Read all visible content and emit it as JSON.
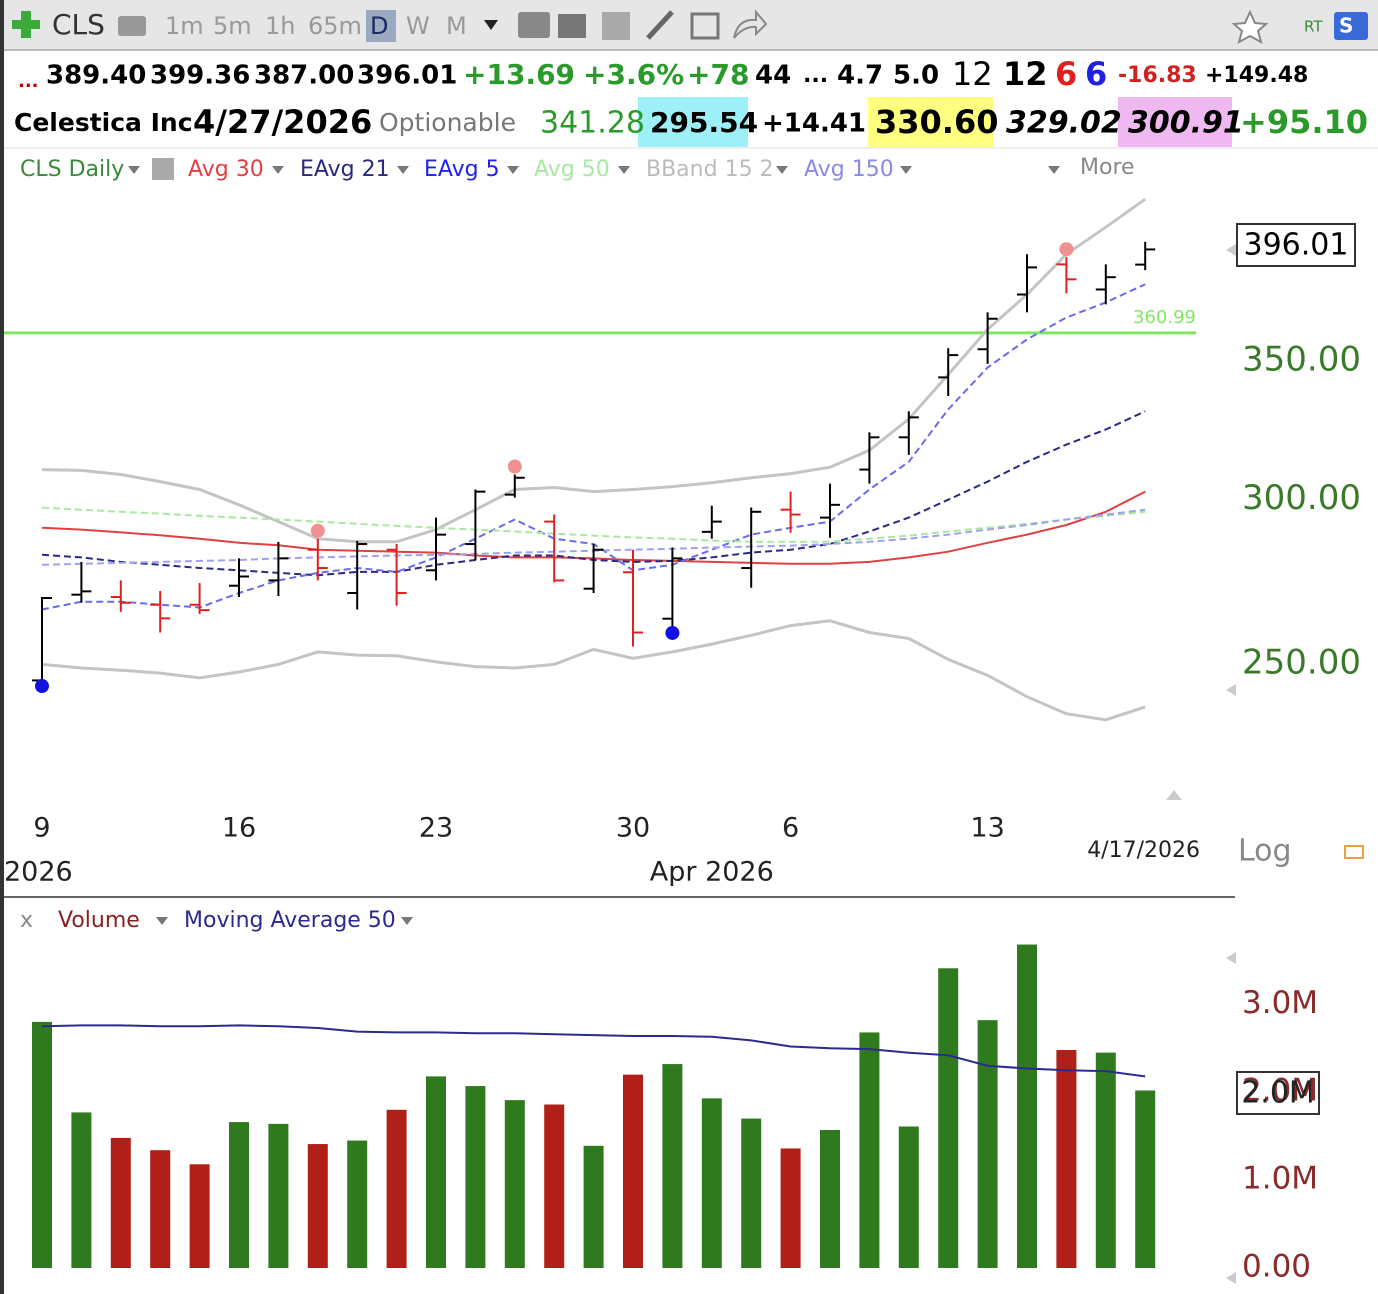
{
  "toolbar": {
    "symbol": "CLS",
    "intervals": [
      "1m",
      "5m",
      "1h",
      "65m",
      "D",
      "W",
      "M"
    ],
    "rt": "RT",
    "s": "S"
  },
  "quote_row": [
    "...",
    "389.40",
    "399.36",
    "387.00",
    "396.01",
    "+13.69",
    "+3.6%",
    "+78",
    "44",
    "...",
    "4.7",
    "5.0",
    "12",
    "12",
    "6",
    "6",
    "-16.83",
    "+149.48"
  ],
  "info_row": [
    "Celestica Inc",
    "4/27/2026",
    "Optionable",
    "341.28",
    "295.54",
    "+14.41",
    "330.60",
    "329.02",
    "300.91",
    "+95.10"
  ],
  "more": "More",
  "log_label": "Log",
  "chart_data": [
    {
      "type": "ohlc",
      "title": "CLS Daily",
      "log_scale": true,
      "up_color": "#000000",
      "down_color": "#e02020",
      "x": [
        "2026-03-09",
        "2026-03-10",
        "2026-03-11",
        "2026-03-12",
        "2026-03-13",
        "2026-03-16",
        "2026-03-17",
        "2026-03-18",
        "2026-03-19",
        "2026-03-20",
        "2026-03-23",
        "2026-03-24",
        "2026-03-25",
        "2026-03-26",
        "2026-03-27",
        "2026-03-30",
        "2026-03-31",
        "2026-04-01",
        "2026-04-02",
        "2026-04-06",
        "2026-04-07",
        "2026-04-08",
        "2026-04-09",
        "2026-04-10",
        "2026-04-13",
        "2026-04-14",
        "2026-04-15",
        "2026-04-16",
        "2026-04-17"
      ],
      "open": [
        245.5,
        270,
        269.3,
        267,
        267,
        272.7,
        274.3,
        283.8,
        270.5,
        283.8,
        277.4,
        285.6,
        301.7,
        292.8,
        271.8,
        276.8,
        262.9,
        289.5,
        278.1,
        296.7,
        294.1,
        310.2,
        321.5,
        343.6,
        354.5,
        376.7,
        389.5,
        378.8,
        389.4
      ],
      "high": [
        269.3,
        280,
        274.3,
        271.1,
        273.5,
        281.1,
        286.3,
        287.3,
        286.6,
        285.6,
        294.1,
        303.4,
        308.5,
        295.1,
        285.6,
        283.8,
        284.5,
        298,
        297.4,
        302.7,
        305.4,
        323.3,
        330.9,
        354.9,
        369.3,
        393.9,
        392.6,
        389.5,
        399.36
      ],
      "low": [
        245.6,
        267.6,
        264.9,
        258.9,
        264.3,
        269.3,
        269.6,
        274.3,
        265.6,
        266.7,
        274.3,
        280.6,
        300.7,
        273.7,
        270.5,
        254.9,
        260.5,
        287.3,
        272.1,
        289.2,
        287.6,
        305.4,
        315.3,
        336.6,
        348.8,
        369.3,
        377.2,
        372.6,
        387.0
      ],
      "close": [
        269,
        271,
        267.6,
        263,
        265.4,
        275.5,
        281.1,
        278.1,
        285.6,
        270.5,
        288.6,
        302.7,
        307.4,
        274.3,
        283.8,
        258.9,
        281.1,
        292.8,
        296,
        295.1,
        298.3,
        321.5,
        328.7,
        352.2,
        366.7,
        388.2,
        383.1,
        384,
        396.01
      ],
      "series": [
        {
          "name": "Avg 30",
          "color": "#e04040",
          "dashed": false,
          "values": [
            290.8,
            290.2,
            289.3,
            288.4,
            287.3,
            286.0,
            285.2,
            283.8,
            283.5,
            283.2,
            282.9,
            282.0,
            281.4,
            281.4,
            281.1,
            280.6,
            280.3,
            280.0,
            279.7,
            279.4,
            279.4,
            280.0,
            281.4,
            283.2,
            286.0,
            288.6,
            291.7,
            296.0,
            302.7
          ]
        },
        {
          "name": "EAvg 21",
          "color": "#2a2a80",
          "dashed": true,
          "values": [
            282.2,
            281.4,
            280.0,
            279.1,
            278.1,
            277.4,
            276.6,
            275.9,
            276.9,
            276.9,
            279.1,
            280.6,
            282.0,
            282.0,
            280.6,
            280.0,
            280.3,
            281.4,
            282.9,
            283.8,
            285.6,
            289.6,
            294.1,
            300,
            306.1,
            312.9,
            318.9,
            324.3,
            330.9
          ]
        },
        {
          "name": "EAvg 5",
          "color": "#2222ee",
          "line_color": "#6a6aee",
          "dashed": true,
          "values": [
            265.6,
            267.9,
            267.9,
            267,
            266.2,
            270.5,
            274.3,
            276.6,
            278.1,
            276.9,
            281.4,
            287.3,
            293.5,
            287.3,
            285.6,
            277.4,
            279.1,
            283.8,
            288.6,
            290.8,
            292.8,
            303.4,
            312.9,
            331.6,
            347.4,
            358.4,
            367.2,
            373.4,
            381.0
          ]
        },
        {
          "name": "Avg 50",
          "color": "#a8e8a0",
          "dashed": true,
          "values": [
            297.4,
            296.7,
            296.0,
            295.4,
            294.7,
            294.1,
            293.5,
            292.8,
            292.1,
            291.4,
            290.8,
            290.2,
            289.6,
            288.9,
            288.3,
            287.7,
            287.3,
            286.7,
            286.3,
            286.3,
            286.3,
            287.3,
            288.3,
            289.6,
            290.8,
            292.1,
            293.5,
            294.7,
            296.0
          ]
        },
        {
          "name": "Avg 150",
          "color": "#8a8ae8",
          "line_color": "#a0a0f0",
          "dashed": true,
          "values": [
            279.1,
            279.4,
            279.7,
            280,
            280.3,
            280.6,
            281.1,
            281.4,
            281.7,
            282.0,
            282.2,
            282.5,
            282.9,
            283.2,
            283.5,
            283.8,
            284.1,
            284.5,
            284.8,
            285.1,
            285.6,
            286.3,
            287.3,
            288.6,
            290.2,
            291.7,
            293.5,
            295.1,
            296.7
          ]
        }
      ],
      "bband": {
        "name": "BBand 15 2",
        "color": "#bbbbbb",
        "upper": [
          310.2,
          309.9,
          308.5,
          306.1,
          303.4,
          298.3,
          292.8,
          287.3,
          286.3,
          286.3,
          290.2,
          296.7,
          303.4,
          304.1,
          302.7,
          303.4,
          304.4,
          305.7,
          307.4,
          308.8,
          311,
          316.9,
          328.1,
          344.7,
          362.4,
          376.7,
          393.9,
          405.9,
          418.7
        ],
        "lower": [
          249.9,
          248.9,
          248.3,
          247.5,
          246.2,
          247.8,
          249.9,
          253.4,
          252.5,
          252.3,
          250.6,
          249.3,
          248.9,
          249.9,
          254.1,
          251.6,
          253.4,
          255.6,
          258.1,
          260.9,
          262.3,
          258.9,
          257.2,
          251.3,
          246.9,
          241.1,
          236.6,
          235,
          238.4
        ]
      },
      "hline": 360.99,
      "hline_color": "#80e860",
      "ylim": [
        215,
        423
      ],
      "yticks": [
        {
          "value": 250,
          "label": "250.00"
        },
        {
          "value": 300,
          "label": "300.00"
        },
        {
          "value": 350,
          "label": "350.00"
        }
      ],
      "xticks": [
        {
          "value": "2026-03-09",
          "label": "9"
        },
        {
          "value": "2026-03-16",
          "label": "16"
        },
        {
          "value": "2026-03-23",
          "label": "23"
        },
        {
          "value": "2026-03-30",
          "label": "30"
        },
        {
          "value": "2026-04-06",
          "label": "6"
        },
        {
          "value": "2026-04-13",
          "label": "13"
        }
      ],
      "period_labels": [
        {
          "value": "2026-03-09",
          "label": "2026"
        },
        {
          "value": "2026-04-01",
          "label": "Apr 2026"
        }
      ],
      "last_date": "4/17/2026"
    },
    {
      "type": "bar",
      "close_button": "x",
      "up_color": "#2f7a1f",
      "down_color": "#b02018",
      "series": [
        {
          "name": "Volume",
          "color": "#8a2020",
          "values": [
            2.8,
            1.77,
            1.48,
            1.34,
            1.18,
            1.66,
            1.64,
            1.41,
            1.45,
            1.8,
            2.18,
            2.07,
            1.91,
            1.86,
            1.39,
            2.2,
            2.32,
            1.93,
            1.7,
            1.36,
            1.57,
            2.68,
            1.61,
            3.41,
            2.82,
            3.68,
            2.48,
            2.45,
            2.02
          ]
        },
        {
          "name": "Moving Average 50",
          "color": "#2a2a90",
          "values": [
            2.75,
            2.76,
            2.76,
            2.75,
            2.75,
            2.76,
            2.75,
            2.73,
            2.69,
            2.68,
            2.68,
            2.67,
            2.67,
            2.66,
            2.65,
            2.64,
            2.64,
            2.63,
            2.59,
            2.52,
            2.5,
            2.49,
            2.45,
            2.42,
            2.3,
            2.27,
            2.25,
            2.24,
            2.18
          ]
        }
      ],
      "last_value_label": "2.0M",
      "ylim": [
        0,
        3.8
      ],
      "yticks": [
        {
          "value": 0,
          "label": "0.00"
        },
        {
          "value": 1,
          "label": "1.0M"
        },
        {
          "value": 2,
          "label": "2.0M"
        },
        {
          "value": 3,
          "label": "3.0M"
        }
      ]
    }
  ]
}
